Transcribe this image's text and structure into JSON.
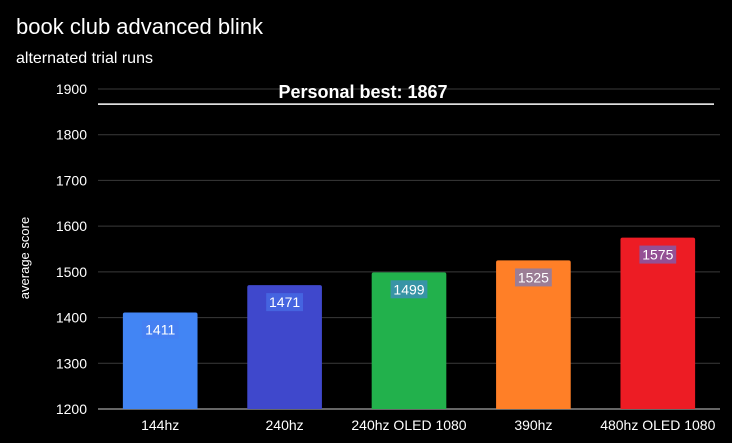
{
  "chart_data": {
    "type": "bar",
    "title": "book club advanced blink",
    "subtitle": "alternated trial runs",
    "xlabel": "",
    "ylabel": "average score",
    "ylim": [
      1200,
      1900
    ],
    "yticks": [
      1200,
      1300,
      1400,
      1500,
      1600,
      1700,
      1800,
      1900
    ],
    "categories": [
      "144hz",
      "240hz",
      "240hz OLED 1080",
      "390hz",
      "480hz OLED 1080"
    ],
    "values": [
      1411,
      1471,
      1499,
      1525,
      1575
    ],
    "data_labels": [
      "1411",
      "1471",
      "1499",
      "1525",
      "1575"
    ],
    "bar_colors": [
      "#4285f4",
      "#3f48cc",
      "#22b14c",
      "#ff7f27",
      "#ed1c24"
    ],
    "reference_line": {
      "value": 1867,
      "label": "Personal best: 1867",
      "color": "#ffffff"
    },
    "grid": true,
    "legend": "none",
    "colors": {
      "background": "#000000",
      "text": "#ffffff",
      "gridline": "#3a3a3a",
      "data_label_text": "#ffffff",
      "data_label_bg": "#4a7cf0"
    }
  }
}
